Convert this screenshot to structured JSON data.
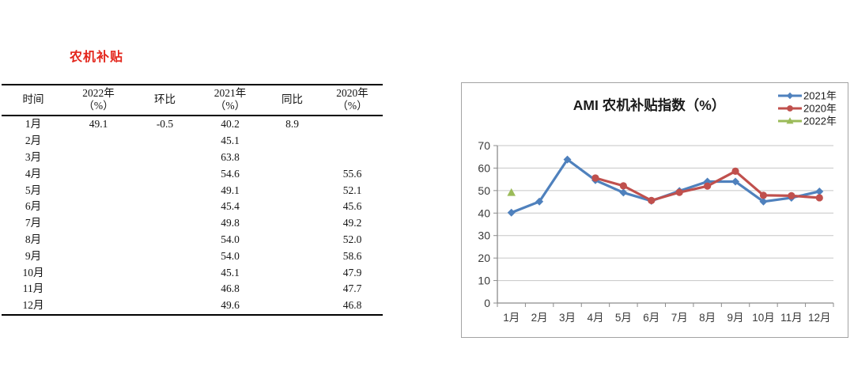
{
  "page": {
    "background": "#ffffff"
  },
  "table": {
    "title": "农机补贴",
    "title_color": "#e3251b",
    "columns": [
      {
        "label": "时间",
        "sub": ""
      },
      {
        "label": "2022年",
        "sub": "（%）"
      },
      {
        "label": "环比",
        "sub": ""
      },
      {
        "label": "2021年",
        "sub": "（%）"
      },
      {
        "label": "同比",
        "sub": ""
      },
      {
        "label": "2020年",
        "sub": "（%）"
      }
    ],
    "rows": [
      [
        "1月",
        "49.1",
        "-0.5",
        "40.2",
        "8.9",
        ""
      ],
      [
        "2月",
        "",
        "",
        "45.1",
        "",
        ""
      ],
      [
        "3月",
        "",
        "",
        "63.8",
        "",
        ""
      ],
      [
        "4月",
        "",
        "",
        "54.6",
        "",
        "55.6"
      ],
      [
        "5月",
        "",
        "",
        "49.1",
        "",
        "52.1"
      ],
      [
        "6月",
        "",
        "",
        "45.4",
        "",
        "45.6"
      ],
      [
        "7月",
        "",
        "",
        "49.8",
        "",
        "49.2"
      ],
      [
        "8月",
        "",
        "",
        "54.0",
        "",
        "52.0"
      ],
      [
        "9月",
        "",
        "",
        "54.0",
        "",
        "58.6"
      ],
      [
        "10月",
        "",
        "",
        "45.1",
        "",
        "47.9"
      ],
      [
        "11月",
        "",
        "",
        "46.8",
        "",
        "47.7"
      ],
      [
        "12月",
        "",
        "",
        "49.6",
        "",
        "46.8"
      ]
    ]
  },
  "chart_data": {
    "type": "line",
    "title": "AMI 农机补贴指数（%）",
    "categories": [
      "1月",
      "2月",
      "3月",
      "4月",
      "5月",
      "6月",
      "7月",
      "8月",
      "9月",
      "10月",
      "11月",
      "12月"
    ],
    "series": [
      {
        "name": "2021年",
        "color": "#4F81BD",
        "marker": "diamond",
        "values": [
          40.2,
          45.1,
          63.8,
          54.6,
          49.1,
          45.4,
          49.8,
          54.0,
          54.0,
          45.1,
          46.8,
          49.6
        ]
      },
      {
        "name": "2020年",
        "color": "#C0504D",
        "marker": "circle",
        "values": [
          null,
          null,
          null,
          55.6,
          52.1,
          45.6,
          49.2,
          52.0,
          58.6,
          47.9,
          47.7,
          46.8
        ]
      },
      {
        "name": "2022年",
        "color": "#9BBB59",
        "marker": "triangle",
        "values": [
          49.1,
          null,
          null,
          null,
          null,
          null,
          null,
          null,
          null,
          null,
          null,
          null
        ]
      }
    ],
    "ylim": [
      0,
      70
    ],
    "yticks": [
      0,
      10,
      20,
      30,
      40,
      50,
      60,
      70
    ],
    "grid": true,
    "legend_position": "top-right",
    "colors": {
      "grid": "#c6c6c6",
      "axis": "#8c8c8c",
      "text": "#3a3a3a",
      "title": "#1a1a1a"
    }
  }
}
